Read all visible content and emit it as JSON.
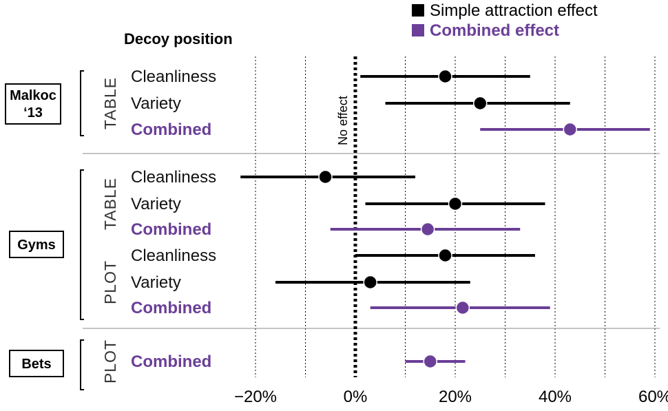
{
  "chart_data": {
    "type": "scatter",
    "x_axis": {
      "ticks": [
        -20,
        0,
        20,
        40,
        60
      ],
      "tick_labels": [
        "−20%",
        "0%",
        "20%",
        "40%",
        "60%"
      ],
      "range": [
        -40,
        60
      ],
      "gridlines": [
        -20,
        -10,
        10,
        20,
        30,
        40,
        50,
        60
      ]
    },
    "reference_line": {
      "x": 0,
      "label": "No effect"
    },
    "header": "Decoy position",
    "legend": [
      {
        "label": "Simple attraction effect",
        "color": "#000000"
      },
      {
        "label": "Combined effect",
        "color": "#6b3f98"
      }
    ],
    "studies": [
      {
        "name": "Malkoc ‘13",
        "name_lines": [
          "Malkoc",
          "‘13"
        ]
      },
      {
        "name": "Gyms",
        "name_lines": [
          "Gyms"
        ]
      },
      {
        "name": "Bets",
        "name_lines": [
          "Bets"
        ]
      }
    ],
    "groups": [
      {
        "study": "Malkoc ‘13",
        "condition": "TABLE"
      },
      {
        "study": "Gyms",
        "condition": "TABLE"
      },
      {
        "study": "Gyms",
        "condition": "PLOT"
      },
      {
        "study": "Bets",
        "condition": "PLOT"
      }
    ],
    "rows": [
      {
        "study": "Malkoc ‘13",
        "condition": "TABLE",
        "label": "Cleanliness",
        "kind": "simple",
        "estimate": 18,
        "ci": [
          1,
          35
        ]
      },
      {
        "study": "Malkoc ‘13",
        "condition": "TABLE",
        "label": "Variety",
        "kind": "simple",
        "estimate": 25,
        "ci": [
          6,
          43
        ]
      },
      {
        "study": "Malkoc ‘13",
        "condition": "TABLE",
        "label": "Combined",
        "kind": "combined",
        "estimate": 43,
        "ci": [
          25,
          59
        ]
      },
      {
        "study": "Gyms",
        "condition": "TABLE",
        "label": "Cleanliness",
        "kind": "simple",
        "estimate": -6,
        "ci": [
          -23,
          12
        ]
      },
      {
        "study": "Gyms",
        "condition": "TABLE",
        "label": "Variety",
        "kind": "simple",
        "estimate": 20,
        "ci": [
          2,
          38
        ]
      },
      {
        "study": "Gyms",
        "condition": "TABLE",
        "label": "Combined",
        "kind": "combined",
        "estimate": 14.5,
        "ci": [
          -5,
          33
        ]
      },
      {
        "study": "Gyms",
        "condition": "PLOT",
        "label": "Cleanliness",
        "kind": "simple",
        "estimate": 18,
        "ci": [
          0,
          36
        ]
      },
      {
        "study": "Gyms",
        "condition": "PLOT",
        "label": "Variety",
        "kind": "simple",
        "estimate": 3,
        "ci": [
          -16,
          23
        ]
      },
      {
        "study": "Gyms",
        "condition": "PLOT",
        "label": "Combined",
        "kind": "combined",
        "estimate": 21.5,
        "ci": [
          3,
          39
        ]
      },
      {
        "study": "Bets",
        "condition": "PLOT",
        "label": "Combined",
        "kind": "combined",
        "estimate": 15,
        "ci": [
          10,
          22
        ]
      }
    ]
  }
}
